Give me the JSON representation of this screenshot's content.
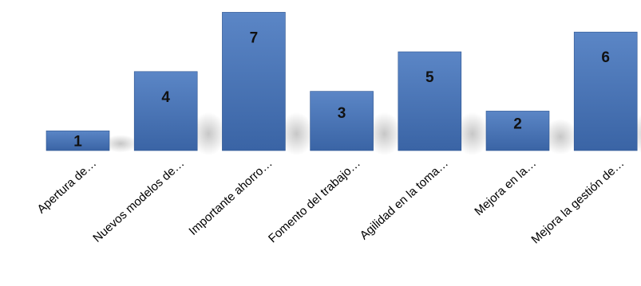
{
  "chart_data": {
    "type": "bar",
    "categories": [
      "Apertura de…",
      "Nuevos modelos de…",
      "Importante ahorro…",
      "Fomento del trabajo…",
      "Agilidad en la toma…",
      "Mejora en la…",
      "Mejora la gestión de…"
    ],
    "values": [
      1,
      4,
      7,
      3,
      5,
      2,
      6
    ],
    "data_labels": [
      "1",
      "4",
      "7",
      "3",
      "5",
      "2",
      "6"
    ],
    "ylim": [
      0,
      7
    ],
    "grid": false,
    "legend": "none",
    "colors": {
      "bar_top": "#5b86c6",
      "bar_bottom": "#3a64a5",
      "bar_edge": "#2f5590",
      "shadow": "#c8c8c8"
    }
  }
}
